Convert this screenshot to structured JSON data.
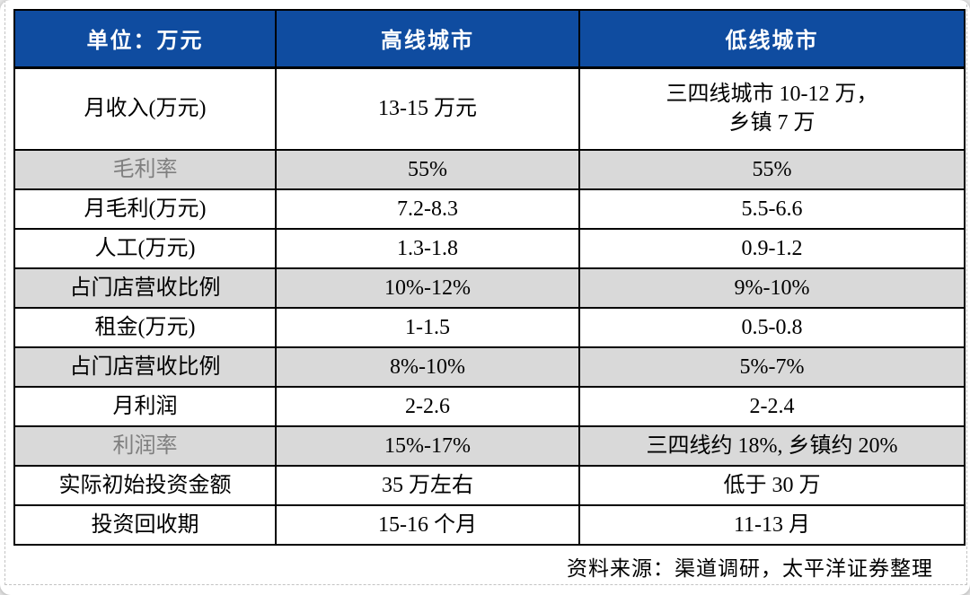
{
  "colors": {
    "header_bg": "#0F4CA0",
    "header_text": "#FFFFFF",
    "shaded_row_bg": "#D9D9D9",
    "muted_label_text": "#7F7F7F",
    "grid_border": "#000000",
    "page_bg": "#E9E9E9"
  },
  "table": {
    "header": {
      "unit": "单位：万元",
      "columns": [
        "高线城市",
        "低线城市"
      ]
    },
    "rows": [
      {
        "label": "月收入(万元)",
        "high": "13-15 万元",
        "low": "三四线城市 10-12 万，\n乡镇 7 万",
        "shaded": false,
        "muted_label": false,
        "tall": true
      },
      {
        "label": "毛利率",
        "high": "55%",
        "low": "55%",
        "shaded": true,
        "muted_label": true,
        "tall": false
      },
      {
        "label": "月毛利(万元)",
        "high": "7.2-8.3",
        "low": "5.5-6.6",
        "shaded": false,
        "muted_label": false,
        "tall": false
      },
      {
        "label": "人工(万元)",
        "high": "1.3-1.8",
        "low": "0.9-1.2",
        "shaded": false,
        "muted_label": false,
        "tall": false
      },
      {
        "label": "占门店营收比例",
        "high": "10%-12%",
        "low": "9%-10%",
        "shaded": true,
        "muted_label": false,
        "tall": false
      },
      {
        "label": "租金(万元)",
        "high": "1-1.5",
        "low": "0.5-0.8",
        "shaded": false,
        "muted_label": false,
        "tall": false
      },
      {
        "label": "占门店营收比例",
        "high": "8%-10%",
        "low": "5%-7%",
        "shaded": true,
        "muted_label": false,
        "tall": false
      },
      {
        "label": "月利润",
        "high": "2-2.6",
        "low": "2-2.4",
        "shaded": false,
        "muted_label": false,
        "tall": false
      },
      {
        "label": "利润率",
        "high": "15%-17%",
        "low": "三四线约 18%, 乡镇约 20%",
        "shaded": true,
        "muted_label": true,
        "tall": false
      },
      {
        "label": "实际初始投资金额",
        "high": "35 万左右",
        "low": "低于 30 万",
        "shaded": false,
        "muted_label": false,
        "tall": false
      },
      {
        "label": "投资回收期",
        "high": "15-16 个月",
        "low": "11-13 月",
        "shaded": false,
        "muted_label": false,
        "tall": false
      }
    ]
  },
  "footer": {
    "source": "资料来源：渠道调研，太平洋证券整理"
  }
}
